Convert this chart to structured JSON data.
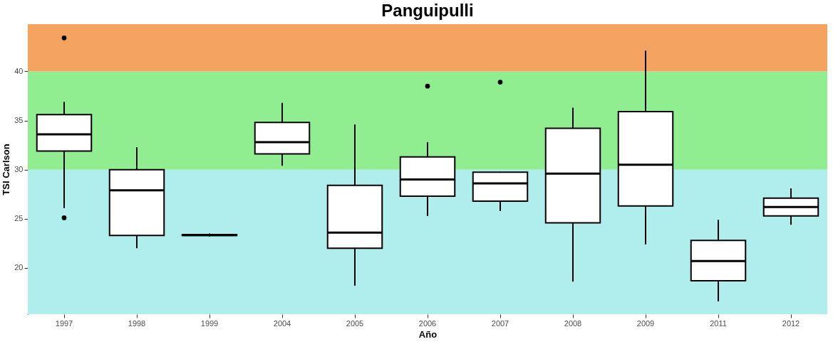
{
  "chart_data": {
    "type": "box",
    "title": "Panguipulli",
    "xlabel": "Año",
    "ylabel": "TSI Carlson",
    "categories": [
      "1997",
      "1998",
      "1999",
      "2004",
      "2005",
      "2006",
      "2007",
      "2008",
      "2009",
      "2011",
      "2012"
    ],
    "boxes": [
      {
        "low": 26.1,
        "q1": 31.9,
        "median": 33.6,
        "q3": 35.6,
        "high": 36.9,
        "outliers": [
          43.4,
          25.1
        ]
      },
      {
        "low": 22.0,
        "q1": 23.3,
        "median": 27.9,
        "q3": 30.0,
        "high": 32.3
      },
      {
        "low": 23.2,
        "q1": 23.3,
        "median": 23.35,
        "q3": 23.4,
        "high": 23.5
      },
      {
        "low": 30.4,
        "q1": 31.6,
        "median": 32.8,
        "q3": 34.8,
        "high": 36.8
      },
      {
        "low": 18.2,
        "q1": 22.0,
        "median": 23.6,
        "q3": 28.4,
        "high": 34.6
      },
      {
        "low": 25.3,
        "q1": 27.3,
        "median": 29.0,
        "q3": 31.3,
        "high": 32.8,
        "outliers": [
          38.5
        ]
      },
      {
        "low": 25.8,
        "q1": 26.8,
        "median": 28.6,
        "q3": 29.75,
        "high": 29.8,
        "outliers": [
          38.9
        ]
      },
      {
        "low": 18.6,
        "q1": 24.6,
        "median": 29.6,
        "q3": 34.2,
        "high": 36.3
      },
      {
        "low": 22.4,
        "q1": 26.3,
        "median": 30.5,
        "q3": 35.9,
        "high": 42.1
      },
      {
        "low": 16.6,
        "q1": 18.7,
        "median": 20.7,
        "q3": 22.8,
        "high": 24.9
      },
      {
        "low": 24.4,
        "q1": 25.3,
        "median": 26.2,
        "q3": 27.1,
        "high": 28.1
      }
    ],
    "ylim": [
      15.3,
      44.8
    ],
    "yticks": [
      20,
      25,
      30,
      35,
      40
    ],
    "bands": [
      {
        "axis": "y",
        "from": 15.3,
        "to": 30,
        "color": "#b0eded"
      },
      {
        "axis": "y",
        "from": 30,
        "to": 40,
        "color": "#90ee90"
      },
      {
        "axis": "y",
        "from": 40,
        "to": 44.8,
        "color": "#f4a460"
      }
    ]
  }
}
